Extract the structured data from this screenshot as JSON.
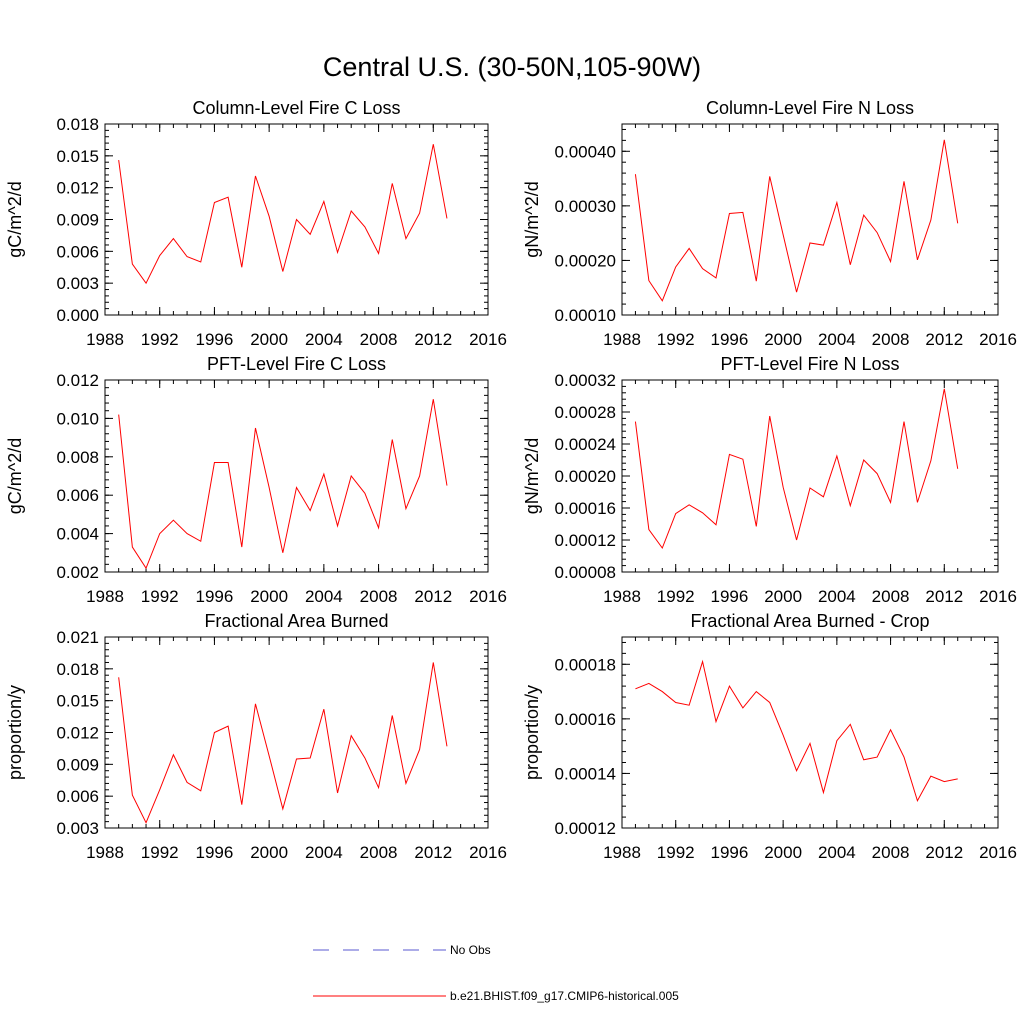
{
  "title": "Central U.S. (30-50N,105-90W)",
  "legend": {
    "obs_label": "No Obs",
    "obs_color": "#5a5ad0",
    "model_label": "b.e21.BHIST.f09_g17.CMIP6-historical.005",
    "model_color": "#ff0000"
  },
  "chart_data": [
    {
      "type": "line",
      "title": "Column-Level Fire C Loss",
      "ylabel": "gC/m^2/d",
      "xlim": [
        1988,
        2016
      ],
      "xticks": [
        "1988",
        "1992",
        "1996",
        "2000",
        "2004",
        "2008",
        "2012",
        "2016"
      ],
      "ylim": [
        0.0,
        0.018
      ],
      "yticks": [
        "0.000",
        "0.003",
        "0.006",
        "0.009",
        "0.012",
        "0.015",
        "0.018"
      ],
      "x": [
        1989,
        1990,
        1991,
        1992,
        1993,
        1994,
        1995,
        1996,
        1997,
        1998,
        1999,
        2000,
        2001,
        2002,
        2003,
        2004,
        2005,
        2006,
        2007,
        2008,
        2009,
        2010,
        2011,
        2012,
        2013
      ],
      "series": [
        {
          "name": "b.e21.BHIST.f09_g17.CMIP6-historical.005",
          "values": [
            0.0146,
            0.0048,
            0.003,
            0.0056,
            0.0072,
            0.0055,
            0.005,
            0.0106,
            0.0111,
            0.0045,
            0.0131,
            0.0093,
            0.0041,
            0.009,
            0.0076,
            0.0107,
            0.0059,
            0.0098,
            0.0083,
            0.0058,
            0.0124,
            0.0072,
            0.0096,
            0.0161,
            0.0091
          ]
        }
      ]
    },
    {
      "type": "line",
      "title": "Column-Level Fire N Loss",
      "ylabel": "gN/m^2/d",
      "xlim": [
        1988,
        2016
      ],
      "xticks": [
        "1988",
        "1992",
        "1996",
        "2000",
        "2004",
        "2008",
        "2012",
        "2016"
      ],
      "ylim": [
        0.0001,
        0.00045
      ],
      "yticks": [
        "0.00010",
        "0.00020",
        "0.00030",
        "0.00040"
      ],
      "yticks_values": [
        0.0001,
        0.0002,
        0.0003,
        0.0004
      ],
      "x": [
        1989,
        1990,
        1991,
        1992,
        1993,
        1994,
        1995,
        1996,
        1997,
        1998,
        1999,
        2000,
        2001,
        2002,
        2003,
        2004,
        2005,
        2006,
        2007,
        2008,
        2009,
        2010,
        2011,
        2012,
        2013
      ],
      "series": [
        {
          "name": "b.e21.BHIST.f09_g17.CMIP6-historical.005",
          "values": [
            0.000358,
            0.000163,
            0.000126,
            0.000188,
            0.000222,
            0.000185,
            0.000168,
            0.000286,
            0.000288,
            0.000162,
            0.000354,
            0.000247,
            0.000142,
            0.000232,
            0.000228,
            0.000306,
            0.000192,
            0.000283,
            0.000251,
            0.000198,
            0.000345,
            0.000201,
            0.000274,
            0.000421,
            0.000268
          ]
        }
      ]
    },
    {
      "type": "line",
      "title": "PFT-Level Fire C Loss",
      "ylabel": "gC/m^2/d",
      "xlim": [
        1988,
        2016
      ],
      "xticks": [
        "1988",
        "1992",
        "1996",
        "2000",
        "2004",
        "2008",
        "2012",
        "2016"
      ],
      "ylim": [
        0.002,
        0.012
      ],
      "yticks": [
        "0.002",
        "0.004",
        "0.006",
        "0.008",
        "0.010",
        "0.012"
      ],
      "x": [
        1989,
        1990,
        1991,
        1992,
        1993,
        1994,
        1995,
        1996,
        1997,
        1998,
        1999,
        2000,
        2001,
        2002,
        2003,
        2004,
        2005,
        2006,
        2007,
        2008,
        2009,
        2010,
        2011,
        2012,
        2013
      ],
      "series": [
        {
          "name": "b.e21.BHIST.f09_g17.CMIP6-historical.005",
          "values": [
            0.0102,
            0.0033,
            0.0022,
            0.004,
            0.0047,
            0.004,
            0.0036,
            0.0077,
            0.0077,
            0.0033,
            0.0095,
            0.0064,
            0.003,
            0.0064,
            0.0052,
            0.0071,
            0.0044,
            0.007,
            0.0061,
            0.0043,
            0.0089,
            0.0053,
            0.007,
            0.011,
            0.0065
          ]
        }
      ]
    },
    {
      "type": "line",
      "title": "PFT-Level Fire N Loss",
      "ylabel": "gN/m^2/d",
      "xlim": [
        1988,
        2016
      ],
      "xticks": [
        "1988",
        "1992",
        "1996",
        "2000",
        "2004",
        "2008",
        "2012",
        "2016"
      ],
      "ylim": [
        8e-05,
        0.00032
      ],
      "yticks": [
        "0.00008",
        "0.00012",
        "0.00016",
        "0.00020",
        "0.00024",
        "0.00028",
        "0.00032"
      ],
      "x": [
        1989,
        1990,
        1991,
        1992,
        1993,
        1994,
        1995,
        1996,
        1997,
        1998,
        1999,
        2000,
        2001,
        2002,
        2003,
        2004,
        2005,
        2006,
        2007,
        2008,
        2009,
        2010,
        2011,
        2012,
        2013
      ],
      "series": [
        {
          "name": "b.e21.BHIST.f09_g17.CMIP6-historical.005",
          "values": [
            0.000268,
            0.000133,
            0.00011,
            0.000153,
            0.000164,
            0.000154,
            0.000139,
            0.000227,
            0.000221,
            0.000137,
            0.000275,
            0.000186,
            0.00012,
            0.000185,
            0.000174,
            0.000225,
            0.000163,
            0.00022,
            0.000203,
            0.000167,
            0.000268,
            0.000167,
            0.000219,
            0.000309,
            0.000209
          ]
        }
      ]
    },
    {
      "type": "line",
      "title": "Fractional Area Burned",
      "ylabel": "proportion/y",
      "xlim": [
        1988,
        2016
      ],
      "xticks": [
        "1988",
        "1992",
        "1996",
        "2000",
        "2004",
        "2008",
        "2012",
        "2016"
      ],
      "ylim": [
        0.003,
        0.021
      ],
      "yticks": [
        "0.003",
        "0.006",
        "0.009",
        "0.012",
        "0.015",
        "0.018",
        "0.021"
      ],
      "x": [
        1989,
        1990,
        1991,
        1992,
        1993,
        1994,
        1995,
        1996,
        1997,
        1998,
        1999,
        2000,
        2001,
        2002,
        2003,
        2004,
        2005,
        2006,
        2007,
        2008,
        2009,
        2010,
        2011,
        2012,
        2013
      ],
      "series": [
        {
          "name": "b.e21.BHIST.f09_g17.CMIP6-historical.005",
          "values": [
            0.0172,
            0.0061,
            0.0035,
            0.0066,
            0.0099,
            0.0073,
            0.0065,
            0.012,
            0.0126,
            0.0052,
            0.0147,
            0.0098,
            0.0048,
            0.0095,
            0.0096,
            0.0142,
            0.0063,
            0.0117,
            0.0096,
            0.0068,
            0.0136,
            0.0072,
            0.0104,
            0.0186,
            0.0107
          ]
        }
      ]
    },
    {
      "type": "line",
      "title": "Fractional Area Burned - Crop",
      "ylabel": "proportion/y",
      "xlim": [
        1988,
        2016
      ],
      "xticks": [
        "1988",
        "1992",
        "1996",
        "2000",
        "2004",
        "2008",
        "2012",
        "2016"
      ],
      "ylim": [
        0.00012,
        0.00019
      ],
      "yticks": [
        "0.00012",
        "0.00014",
        "0.00016",
        "0.00018"
      ],
      "yticks_values": [
        0.00012,
        0.00014,
        0.00016,
        0.00018
      ],
      "x": [
        1989,
        1990,
        1991,
        1992,
        1993,
        1994,
        1995,
        1996,
        1997,
        1998,
        1999,
        2000,
        2001,
        2002,
        2003,
        2004,
        2005,
        2006,
        2007,
        2008,
        2009,
        2010,
        2011,
        2012,
        2013
      ],
      "series": [
        {
          "name": "b.e21.BHIST.f09_g17.CMIP6-historical.005",
          "values": [
            0.000171,
            0.000173,
            0.00017,
            0.000166,
            0.000165,
            0.000181,
            0.000159,
            0.000172,
            0.000164,
            0.00017,
            0.000166,
            0.000154,
            0.000141,
            0.000151,
            0.000133,
            0.000152,
            0.000158,
            0.000145,
            0.000146,
            0.000156,
            0.000146,
            0.00013,
            0.000139,
            0.000137,
            0.000138
          ]
        }
      ]
    }
  ]
}
